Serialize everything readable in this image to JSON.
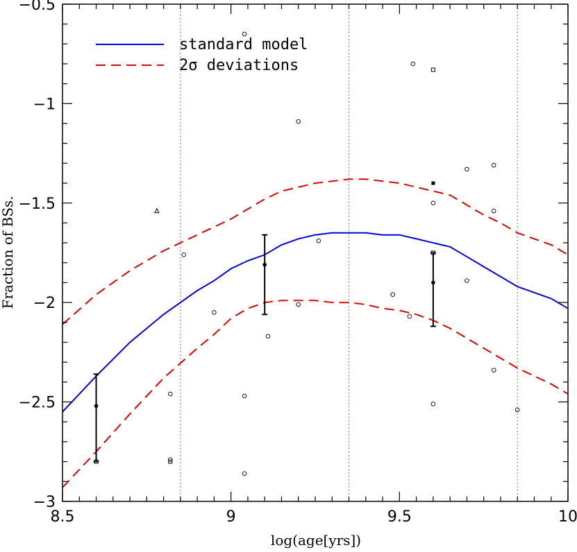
{
  "chart_data": {
    "type": "line",
    "title": "",
    "xlabel": "log(age[yrs])",
    "ylabel": "Fraction of BSs.",
    "xlim": [
      8.5,
      10
    ],
    "ylim": [
      -3,
      -0.5
    ],
    "grid": false,
    "legend_position": "top-left",
    "x_ticks": [
      {
        "value": 8.5,
        "label": "8.5"
      },
      {
        "value": 9,
        "label": "9"
      },
      {
        "value": 9.5,
        "label": "9.5"
      },
      {
        "value": 10,
        "label": "10"
      }
    ],
    "y_ticks": [
      {
        "value": -0.5,
        "label": "−0.5"
      },
      {
        "value": -1,
        "label": "−1"
      },
      {
        "value": -1.5,
        "label": "−1.5"
      },
      {
        "value": -2,
        "label": "−2"
      },
      {
        "value": -2.5,
        "label": "−2.5"
      },
      {
        "value": -3,
        "label": "−3"
      }
    ],
    "vertical_lines": {
      "x": [
        8.85,
        9.35,
        9.85
      ],
      "color": "#8888ff"
    },
    "series": [
      {
        "name": "standard model",
        "style": "solid",
        "color": "#0000dd",
        "x": [
          8.5,
          8.6,
          8.7,
          8.8,
          8.9,
          8.95,
          9.0,
          9.05,
          9.1,
          9.15,
          9.2,
          9.25,
          9.3,
          9.35,
          9.4,
          9.45,
          9.5,
          9.55,
          9.6,
          9.65,
          9.7,
          9.75,
          9.8,
          9.85,
          9.9,
          9.95,
          10.0
        ],
        "y": [
          -2.55,
          -2.37,
          -2.2,
          -2.06,
          -1.94,
          -1.89,
          -1.83,
          -1.79,
          -1.76,
          -1.71,
          -1.68,
          -1.66,
          -1.65,
          -1.65,
          -1.65,
          -1.66,
          -1.66,
          -1.68,
          -1.7,
          -1.72,
          -1.77,
          -1.82,
          -1.87,
          -1.92,
          -1.95,
          -1.98,
          -2.03
        ]
      },
      {
        "name": "2σ deviations",
        "style": "dashed",
        "color": "#dd0000",
        "x": [
          8.5,
          8.6,
          8.7,
          8.8,
          8.9,
          8.95,
          9.0,
          9.05,
          9.1,
          9.15,
          9.2,
          9.25,
          9.3,
          9.35,
          9.4,
          9.45,
          9.5,
          9.55,
          9.6,
          9.65,
          9.7,
          9.75,
          9.8,
          9.85,
          9.9,
          9.95,
          10.0
        ],
        "y": [
          -2.11,
          -1.96,
          -1.84,
          -1.74,
          -1.66,
          -1.62,
          -1.58,
          -1.53,
          -1.48,
          -1.44,
          -1.42,
          -1.4,
          -1.39,
          -1.38,
          -1.38,
          -1.39,
          -1.4,
          -1.42,
          -1.44,
          -1.46,
          -1.51,
          -1.56,
          -1.6,
          -1.65,
          -1.68,
          -1.71,
          -1.76
        ]
      },
      {
        "name": "",
        "style": "dashed",
        "color": "#dd0000",
        "x": [
          8.5,
          8.6,
          8.7,
          8.8,
          8.9,
          8.95,
          9.0,
          9.05,
          9.1,
          9.15,
          9.2,
          9.25,
          9.3,
          9.35,
          9.4,
          9.45,
          9.5,
          9.55,
          9.6,
          9.65,
          9.7,
          9.75,
          9.8,
          9.85,
          9.9,
          9.95,
          10.0
        ],
        "y": [
          -2.93,
          -2.75,
          -2.56,
          -2.38,
          -2.23,
          -2.16,
          -2.08,
          -2.03,
          -2.0,
          -1.99,
          -1.99,
          -1.99,
          -2.0,
          -2.0,
          -2.01,
          -2.03,
          -2.04,
          -2.06,
          -2.09,
          -2.13,
          -2.18,
          -2.23,
          -2.28,
          -2.33,
          -2.37,
          -2.41,
          -2.46
        ]
      }
    ],
    "open_circles": [
      {
        "x": 9.04,
        "y": -0.65
      },
      {
        "x": 9.54,
        "y": -0.8
      },
      {
        "x": 9.2,
        "y": -1.09
      },
      {
        "x": 9.7,
        "y": -1.33
      },
      {
        "x": 9.78,
        "y": -1.31
      },
      {
        "x": 9.6,
        "y": -1.5
      },
      {
        "x": 9.78,
        "y": -1.54
      },
      {
        "x": 9.26,
        "y": -1.69
      },
      {
        "x": 8.86,
        "y": -1.76
      },
      {
        "x": 9.7,
        "y": -1.89
      },
      {
        "x": 9.48,
        "y": -1.96
      },
      {
        "x": 9.2,
        "y": -2.01
      },
      {
        "x": 8.95,
        "y": -2.05
      },
      {
        "x": 9.53,
        "y": -2.07
      },
      {
        "x": 9.11,
        "y": -2.17
      },
      {
        "x": 9.78,
        "y": -2.34
      },
      {
        "x": 8.82,
        "y": -2.46
      },
      {
        "x": 9.04,
        "y": -2.47
      },
      {
        "x": 9.6,
        "y": -2.51
      },
      {
        "x": 9.85,
        "y": -2.54
      },
      {
        "x": 8.82,
        "y": -2.79
      },
      {
        "x": 9.04,
        "y": -2.86
      }
    ],
    "open_squares": [
      {
        "x": 9.6,
        "y": -0.83
      },
      {
        "x": 8.82,
        "y": -2.8
      },
      {
        "x": 8.6,
        "y": -2.8
      },
      {
        "x": 9.6,
        "y": -1.75
      }
    ],
    "filled_squares": [
      {
        "x": 9.6,
        "y": -1.4
      }
    ],
    "open_triangles": [
      {
        "x": 8.78,
        "y": -1.54
      }
    ],
    "error_bars": [
      {
        "x": 8.6,
        "y": -2.52,
        "y_low": -2.8,
        "y_high": -2.36
      },
      {
        "x": 9.1,
        "y": -1.81,
        "y_low": -2.06,
        "y_high": -1.66
      },
      {
        "x": 9.6,
        "y": -1.9,
        "y_low": -2.12,
        "y_high": -1.75
      }
    ]
  }
}
